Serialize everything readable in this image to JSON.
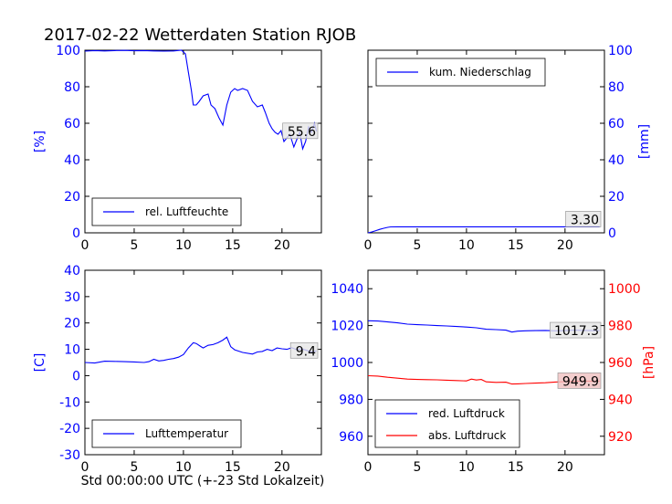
{
  "title": "2017-02-22 Wetterdaten Station RJOB",
  "xlabel_bottom": "Std 00:00:00 UTC (+-23 Std Lokalzeit)",
  "colors": {
    "axis_blue": "#0000ff",
    "axis_red": "#ff0000",
    "frame": "#000000",
    "value_box_bg": "#e6e6e6",
    "red_box_bg": "#f0c0c0"
  },
  "chart_data": [
    {
      "type": "line",
      "panel": "top-left",
      "ylabel": "[%]",
      "ylabel_color": "#0000ff",
      "xlim": [
        0,
        24
      ],
      "ylim": [
        0,
        100
      ],
      "xticks": [
        0,
        5,
        10,
        15,
        20
      ],
      "yticks": [
        0,
        20,
        40,
        60,
        80,
        100
      ],
      "legend": "bottom-left",
      "last_value_label": "55.6",
      "series": [
        {
          "name": "rel. Luftfeuchte",
          "color": "#0000ff",
          "x": [
            0,
            1,
            2,
            3,
            4,
            5,
            6,
            7,
            8,
            9,
            9.8,
            10.2,
            10.5,
            10.8,
            11.0,
            11.3,
            11.6,
            12.0,
            12.5,
            12.8,
            13.2,
            13.6,
            14.0,
            14.4,
            14.8,
            15.2,
            15.5,
            16.0,
            16.5,
            17.0,
            17.5,
            18.0,
            18.3,
            18.7,
            19.0,
            19.3,
            19.6,
            19.9,
            20.2,
            20.5,
            20.8,
            21.2,
            21.5,
            21.8,
            22.1,
            22.4,
            22.7,
            23.0,
            23.3,
            23.5
          ],
          "y": [
            99.5,
            99.8,
            99.6,
            99.8,
            99.9,
            99.7,
            99.8,
            99.6,
            99.5,
            99.6,
            100,
            98,
            88,
            78,
            70,
            70,
            72,
            75,
            76,
            70,
            68,
            63,
            59,
            70,
            77,
            79,
            78,
            79,
            78,
            72,
            69,
            70,
            66,
            60,
            57,
            55,
            54,
            56,
            50,
            52,
            54,
            47,
            51,
            55,
            46,
            50,
            58,
            55,
            60,
            55.6
          ]
        }
      ]
    },
    {
      "type": "line",
      "panel": "top-right",
      "ylabel": "[mm]",
      "ylabel_color": "#0000ff",
      "xlim": [
        0,
        24
      ],
      "ylim": [
        0,
        100
      ],
      "xticks": [
        0,
        5,
        10,
        15,
        20
      ],
      "yticks": [
        0,
        20,
        40,
        60,
        80,
        100
      ],
      "legend": "top-left",
      "last_value_label": "3.30",
      "series": [
        {
          "name": "kum. Niederschlag",
          "color": "#0000ff",
          "x": [
            0,
            0.4,
            0.8,
            1.2,
            1.6,
            2.0,
            2.3,
            3,
            5,
            10,
            15,
            20,
            23.5
          ],
          "y": [
            0,
            0.5,
            1.2,
            1.9,
            2.5,
            3.0,
            3.25,
            3.3,
            3.3,
            3.3,
            3.3,
            3.3,
            3.3
          ]
        }
      ]
    },
    {
      "type": "line",
      "panel": "bottom-left",
      "ylabel": "[C]",
      "ylabel_color": "#0000ff",
      "xlim": [
        0,
        24
      ],
      "ylim": [
        -30,
        40
      ],
      "xticks": [
        0,
        5,
        10,
        15,
        20
      ],
      "yticks": [
        -30,
        -20,
        -10,
        0,
        10,
        20,
        30,
        40
      ],
      "legend": "bottom-left",
      "last_value_label": "9.4",
      "series": [
        {
          "name": "Lufttemperatur",
          "color": "#0000ff",
          "x": [
            0,
            1,
            2,
            3,
            4,
            5,
            6,
            6.5,
            7,
            7.5,
            8,
            8.5,
            9,
            9.5,
            10,
            10.5,
            11,
            11.3,
            11.7,
            12,
            12.5,
            13,
            13.5,
            14,
            14.4,
            14.8,
            15.2,
            16,
            17,
            17.5,
            18,
            18.5,
            19,
            19.5,
            20,
            20.5,
            21,
            21.5,
            22,
            22.5,
            23,
            23.5
          ],
          "y": [
            5,
            4.8,
            5.5,
            5.4,
            5.3,
            5.2,
            5.0,
            5.3,
            6.2,
            5.6,
            5.8,
            6.2,
            6.5,
            7.0,
            8.0,
            10.5,
            12.5,
            12.2,
            11.2,
            10.5,
            11.5,
            11.8,
            12.5,
            13.5,
            14.6,
            11.0,
            9.8,
            8.8,
            8.2,
            9.0,
            9.2,
            10.0,
            9.5,
            10.5,
            10.2,
            10.0,
            10.6,
            9.8,
            10.2,
            9.6,
            9.0,
            9.4
          ]
        }
      ]
    },
    {
      "type": "line",
      "panel": "bottom-right",
      "ylabel_left": "",
      "ylabel_right": "[hPa]",
      "ylabel_right_color": "#ff0000",
      "xlim": [
        0,
        24
      ],
      "ylim_left": [
        950,
        1050
      ],
      "ylim_right": [
        910,
        1010
      ],
      "xticks": [
        0,
        5,
        10,
        15,
        20
      ],
      "yticks_left": [
        960,
        980,
        1000,
        1020,
        1040
      ],
      "yticks_right": [
        920,
        940,
        960,
        980,
        1000
      ],
      "legend": "bottom-left",
      "series": [
        {
          "name": "red. Luftdruck",
          "color": "#0000ff",
          "axis": "left",
          "last_value_label": "1017.3",
          "x": [
            0,
            1,
            2,
            3,
            4,
            5,
            6,
            7,
            8,
            9,
            10,
            11,
            12,
            13,
            14,
            14.6,
            15.2,
            16,
            17,
            18,
            19,
            20,
            21,
            22,
            23,
            23.5
          ],
          "y": [
            1022.6,
            1022.5,
            1022.0,
            1021.5,
            1020.8,
            1020.5,
            1020.3,
            1020.0,
            1019.8,
            1019.5,
            1019.2,
            1018.8,
            1018.0,
            1017.8,
            1017.5,
            1016.5,
            1017.0,
            1017.2,
            1017.3,
            1017.4,
            1017.2,
            1017.3,
            1017.5,
            1017.4,
            1017.3,
            1017.3
          ]
        },
        {
          "name": "abs. Luftdruck",
          "color": "#ff0000",
          "axis": "right",
          "last_value_label": "949.9",
          "x": [
            0,
            1,
            2,
            3,
            4,
            5,
            6,
            7,
            8,
            9,
            10,
            10.5,
            11,
            11.5,
            12,
            13,
            14,
            14.6,
            15.2,
            16,
            17,
            18,
            19,
            20,
            21,
            22,
            23,
            23.5
          ],
          "y": [
            952.8,
            952.6,
            952.0,
            951.5,
            951.0,
            950.8,
            950.7,
            950.6,
            950.4,
            950.2,
            950.0,
            951.0,
            950.5,
            950.8,
            949.5,
            949.2,
            949.3,
            948.3,
            948.4,
            948.6,
            948.8,
            949.0,
            949.4,
            949.6,
            949.8,
            949.9,
            949.8,
            949.9
          ]
        }
      ]
    }
  ]
}
